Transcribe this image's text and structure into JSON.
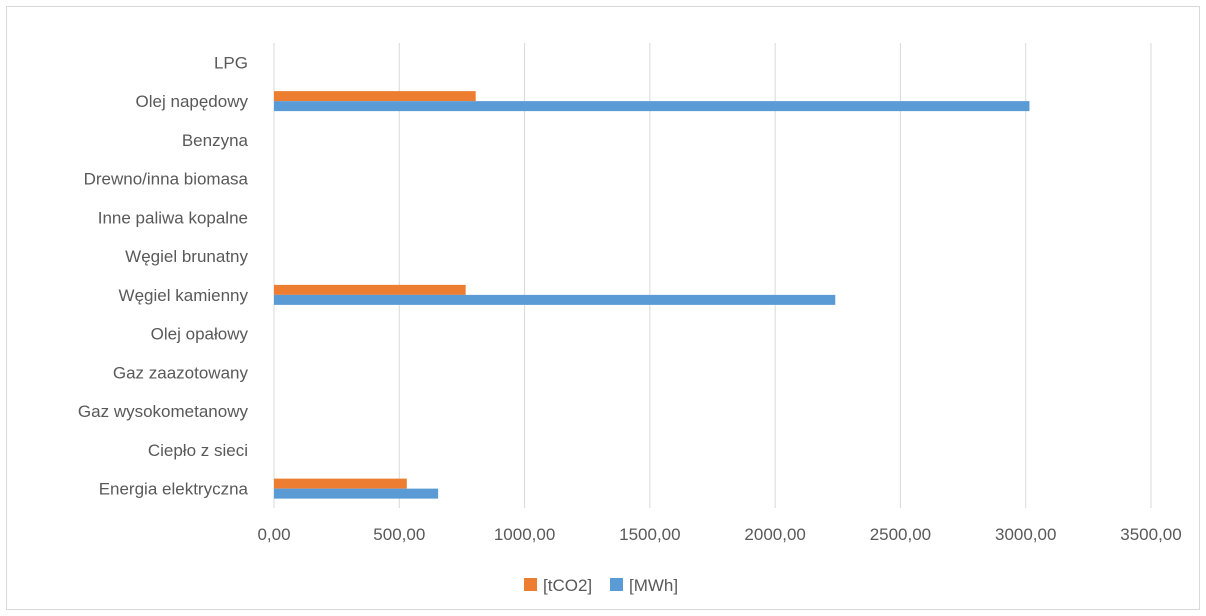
{
  "chart_data": {
    "type": "bar",
    "orientation": "horizontal",
    "categories": [
      "LPG",
      "Olej napędowy",
      "Benzyna",
      "Drewno/inna biomasa",
      "Inne paliwa kopalne",
      "Węgiel brunatny",
      "Węgiel kamienny",
      "Olej opałowy",
      "Gaz zaazotowany",
      "Gaz wysokometanowy",
      "Ciepło z sieci",
      "Energia elektryczna"
    ],
    "series": [
      {
        "name": "[tCO2]",
        "color": "#ed7d31",
        "values": [
          0,
          805,
          0,
          0,
          0,
          0,
          765,
          0,
          0,
          0,
          0,
          530
        ]
      },
      {
        "name": "[MWh]",
        "color": "#5b9bd5",
        "values": [
          0,
          3015,
          0,
          0,
          0,
          0,
          2240,
          0,
          0,
          0,
          0,
          655
        ]
      }
    ],
    "xlim": [
      0,
      3500
    ],
    "x_ticks": [
      "0,00",
      "500,00",
      "1000,00",
      "1500,00",
      "2000,00",
      "2500,00",
      "3000,00",
      "3500,00"
    ],
    "grid": true,
    "legend": "bottom"
  }
}
